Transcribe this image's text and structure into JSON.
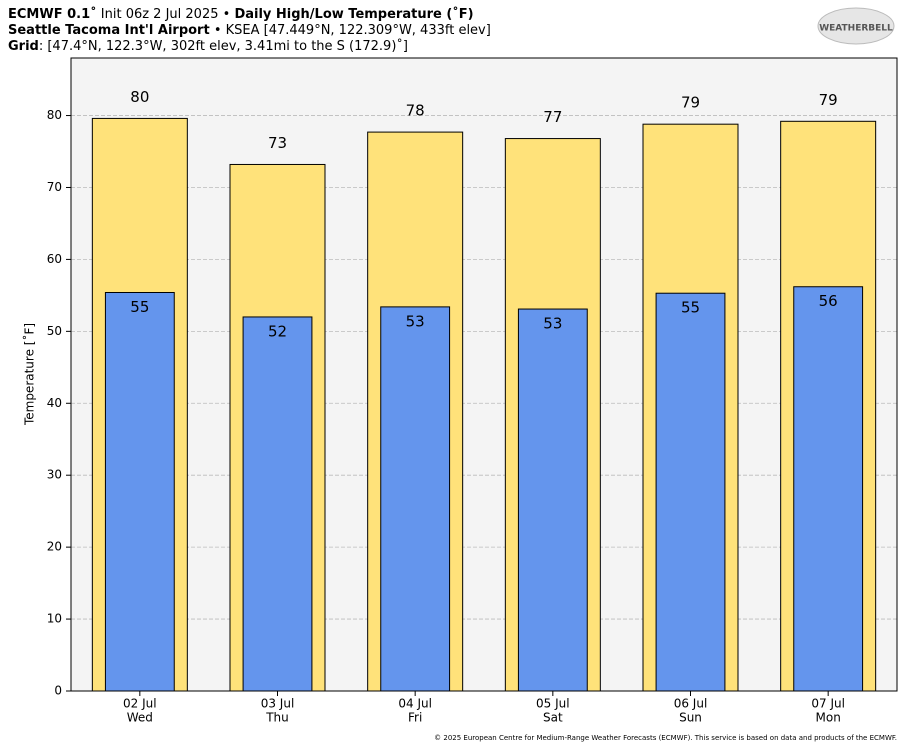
{
  "header": {
    "model": "ECMWF 0.1˚",
    "init": " Init 06z 2 Jul 2025 • ",
    "title": "Daily High/Low Temperature (˚F)",
    "station": "Seattle Tacoma Int'l Airport",
    "station_info": " • KSEA [47.449°N, 122.309°W, 433ft elev]",
    "grid_label": "Grid",
    "grid_info": ": [47.4°N, 122.3°W, 302ft elev, 3.41mi to the S (172.9)˚]",
    "logo": "WEATHERBELL"
  },
  "footer": "© 2025 European Centre for Medium-Range Weather Forecasts (ECMWF). This service is based on data and products of the ECMWF.",
  "chart_data": {
    "type": "bar",
    "ylabel": "Temperature [˚F]",
    "categories": [
      "02 Jul",
      "03 Jul",
      "04 Jul",
      "05 Jul",
      "06 Jul",
      "07 Jul"
    ],
    "category_sublabels": [
      "Wed",
      "Thu",
      "Fri",
      "Sat",
      "Sun",
      "Mon"
    ],
    "ylim": [
      0,
      88
    ],
    "yticks": [
      0,
      10,
      20,
      30,
      40,
      50,
      60,
      70,
      80
    ],
    "grid": true,
    "series": [
      {
        "name": "High",
        "color": "#ffe27a",
        "values": [
          79.6,
          73.2,
          77.7,
          76.8,
          78.8,
          79.2
        ],
        "value_labels": [
          "80",
          "73",
          "78",
          "77",
          "79",
          "79"
        ]
      },
      {
        "name": "Low",
        "color": "#6495ed",
        "values": [
          55.4,
          52.0,
          53.4,
          53.1,
          55.3,
          56.2
        ],
        "value_labels": [
          "55",
          "52",
          "53",
          "53",
          "55",
          "56"
        ]
      }
    ]
  }
}
